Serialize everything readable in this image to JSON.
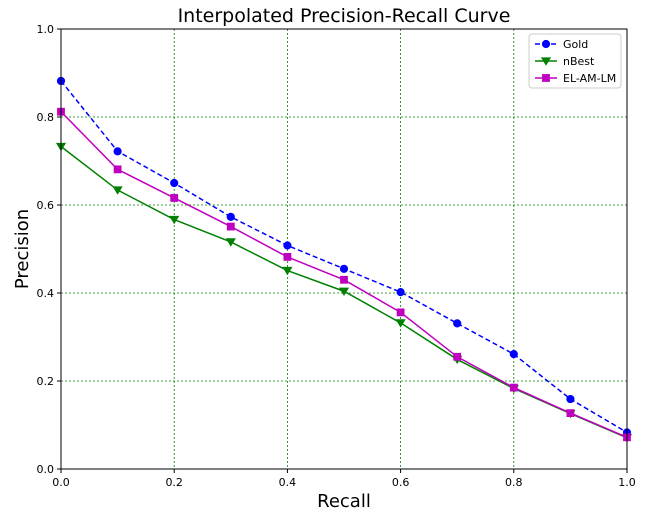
{
  "chart_data": {
    "type": "line",
    "title": "Interpolated Precision-Recall Curve",
    "xlabel": "Recall",
    "ylabel": "Precision",
    "xlim": [
      0.0,
      1.0
    ],
    "ylim": [
      0.0,
      1.0
    ],
    "xticks": [
      "0.0",
      "0.2",
      "0.4",
      "0.6",
      "0.8",
      "1.0"
    ],
    "yticks": [
      "0.0",
      "0.2",
      "0.4",
      "0.6",
      "0.8",
      "1.0"
    ],
    "grid": true,
    "grid_color": "#008000",
    "legend_position": "top-right",
    "x": [
      0.0,
      0.1,
      0.2,
      0.3,
      0.4,
      0.5,
      0.6,
      0.7,
      0.8,
      0.9,
      1.0
    ],
    "series": [
      {
        "name": "Gold",
        "color": "#0000ff",
        "linestyle": "dashed",
        "marker": "circle",
        "values": [
          0.882,
          0.722,
          0.65,
          0.573,
          0.508,
          0.455,
          0.402,
          0.331,
          0.261,
          0.159,
          0.083
        ]
      },
      {
        "name": "nBest",
        "color": "#008000",
        "linestyle": "solid",
        "marker": "triangle-down",
        "values": [
          0.733,
          0.634,
          0.567,
          0.516,
          0.451,
          0.404,
          0.332,
          0.249,
          0.183,
          0.126,
          0.071
        ]
      },
      {
        "name": "EL-AM-LM",
        "color": "#bf00bf",
        "linestyle": "solid",
        "marker": "square",
        "values": [
          0.812,
          0.681,
          0.616,
          0.551,
          0.482,
          0.43,
          0.356,
          0.255,
          0.185,
          0.127,
          0.072
        ]
      }
    ]
  }
}
